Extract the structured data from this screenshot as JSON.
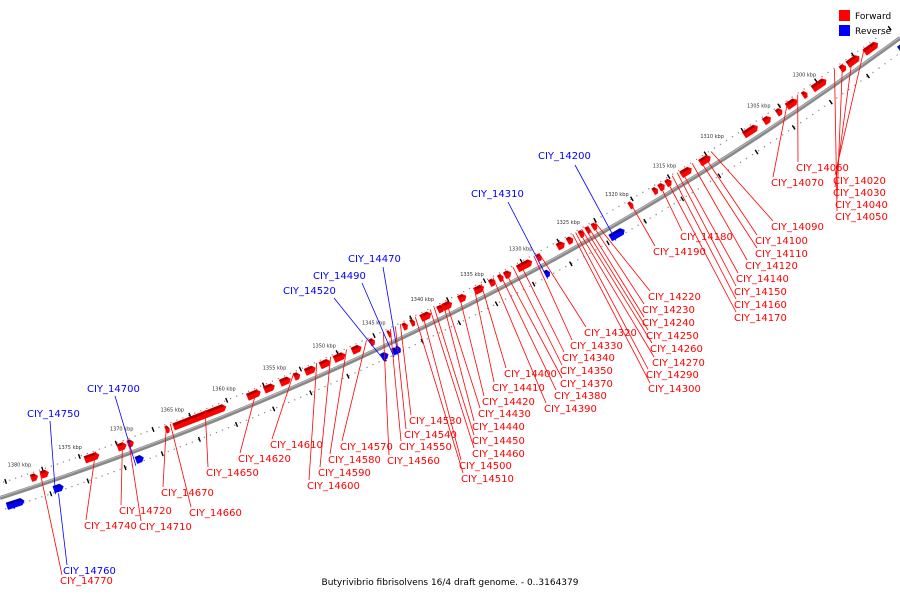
{
  "caption": "Butyrivibrio fibrisolvens 16/4 draft genome. - 0..3164379",
  "legend": {
    "forward_label": "Forward",
    "reverse_label": "Reverse",
    "forward_color": "#ff0000",
    "reverse_color": "#0000ff"
  },
  "colors": {
    "forward": "#ff0000",
    "reverse": "#0000ff",
    "backbone": "#888888",
    "tick": "#000000"
  },
  "scale_ticks": [
    "1300 kbp",
    "1305 kbp",
    "1310 kbp",
    "1315 kbp",
    "1320 kbp",
    "1325 kbp",
    "1330 kbp",
    "1335 kbp",
    "1340 kbp",
    "1345 kbp",
    "1350 kbp",
    "1355 kbp",
    "1360 kbp",
    "1365 kbp",
    "1370 kbp",
    "1375 kbp",
    "1380 kbp"
  ],
  "forward_labels": [
    "CIY_14020",
    "CIY_14030",
    "CIY_14040",
    "CIY_14050",
    "CIY_14060",
    "CIY_14070",
    "CIY_14090",
    "CIY_14100",
    "CIY_14110",
    "CIY_14120",
    "CIY_14140",
    "CIY_14150",
    "CIY_14160",
    "CIY_14170",
    "CIY_14180",
    "CIY_14190",
    "CIY_14220",
    "CIY_14230",
    "CIY_14240",
    "CIY_14250",
    "CIY_14260",
    "CIY_14270",
    "CIY_14290",
    "CIY_14300",
    "CIY_14320",
    "CIY_14330",
    "CIY_14340",
    "CIY_14350",
    "CIY_14370",
    "CIY_14380",
    "CIY_14390",
    "CIY_14400",
    "CIY_14410",
    "CIY_14420",
    "CIY_14430",
    "CIY_14440",
    "CIY_14450",
    "CIY_14460",
    "CIY_14500",
    "CIY_14510",
    "CIY_14530",
    "CIY_14540",
    "CIY_14550",
    "CIY_14560",
    "CIY_14570",
    "CIY_14580",
    "CIY_14590",
    "CIY_14600",
    "CIY_14610",
    "CIY_14620",
    "CIY_14650",
    "CIY_14660",
    "CIY_14670",
    "CIY_14710",
    "CIY_14720",
    "CIY_14740",
    "CIY_14770"
  ],
  "reverse_labels": [
    "CIY_14200",
    "CIY_14310",
    "CIY_14470",
    "CIY_14490",
    "CIY_14520",
    "CIY_14700",
    "CIY_14750",
    "CIY_14760"
  ]
}
